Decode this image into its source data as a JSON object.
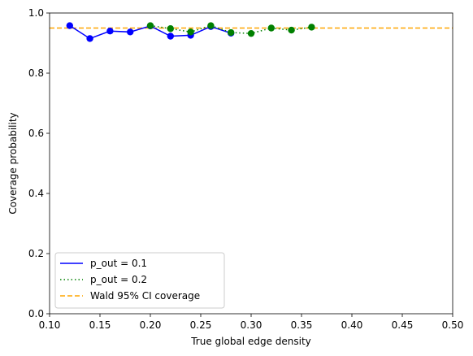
{
  "chart_data": {
    "type": "line",
    "title": "",
    "xlabel": "True global edge density",
    "ylabel": "Coverage probability",
    "xlim": [
      0.1,
      0.5
    ],
    "ylim": [
      0.0,
      1.0
    ],
    "x_ticks": [
      "0.10",
      "0.15",
      "0.20",
      "0.25",
      "0.30",
      "0.35",
      "0.40",
      "0.45",
      "0.50"
    ],
    "y_ticks": [
      "0.0",
      "0.2",
      "0.4",
      "0.6",
      "0.8",
      "1.0"
    ],
    "grid": false,
    "legend_position": "lower-left",
    "series": [
      {
        "name": "p_out = 0.1",
        "style": "solid",
        "color": "#0000ff",
        "x": [
          0.12,
          0.14,
          0.16,
          0.18,
          0.2,
          0.22,
          0.24,
          0.26,
          0.28
        ],
        "y": [
          0.958,
          0.915,
          0.94,
          0.937,
          0.957,
          0.923,
          0.926,
          0.955,
          0.933
        ]
      },
      {
        "name": "p_out = 0.2",
        "style": "dotted",
        "color": "#008000",
        "x": [
          0.2,
          0.22,
          0.24,
          0.26,
          0.28,
          0.3,
          0.32,
          0.34,
          0.36
        ],
        "y": [
          0.958,
          0.948,
          0.937,
          0.958,
          0.935,
          0.932,
          0.95,
          0.943,
          0.953
        ]
      }
    ],
    "reference_line": {
      "name": "Wald 95% CI coverage",
      "style": "dashed",
      "color": "#ffa500",
      "y": 0.95
    }
  }
}
